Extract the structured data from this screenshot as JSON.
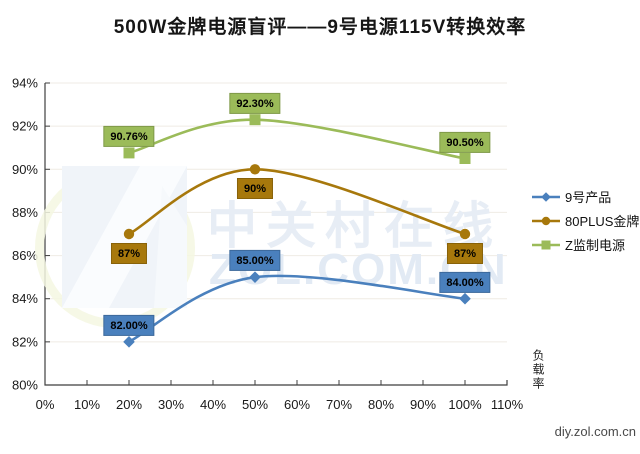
{
  "title": "500W金牌电源盲评——9号电源115V转换效率",
  "watermark": {
    "brand_cn": "中关村在线",
    "brand_en": "ZOL.COM.CN",
    "site": "diy.zol.com.cn"
  },
  "chart_data": {
    "type": "line",
    "title": "500W金牌电源盲评——9号电源115V转换效率",
    "x_label": "负载率",
    "x": [
      20,
      50,
      100
    ],
    "x_axis": {
      "range": [
        0,
        110
      ],
      "tick_step": 10,
      "tick_labels": [
        "0%",
        "10%",
        "20%",
        "30%",
        "40%",
        "50%",
        "60%",
        "70%",
        "80%",
        "90%",
        "100%",
        "110%"
      ]
    },
    "y_axis": {
      "range": [
        80,
        94
      ],
      "tick_step": 2,
      "tick_labels": [
        "80%",
        "82%",
        "84%",
        "86%",
        "88%",
        "90%",
        "92%",
        "94%"
      ]
    },
    "grid": "horizontal",
    "legend_position": "right",
    "colors": {
      "axis": "#3f3f3f",
      "gridline": "#efebe4"
    },
    "series": [
      {
        "name": "9号产品",
        "color": "#4a80bd",
        "marker": "diamond",
        "label_side": "above",
        "values": [
          82.0,
          85.0,
          84.0
        ],
        "point_labels": [
          "82.00%",
          "85.00%",
          "84.00%"
        ]
      },
      {
        "name": "80PLUS金牌",
        "color": "#a7780c",
        "marker": "circle",
        "label_side": "below",
        "values": [
          87,
          90,
          87
        ],
        "point_labels": [
          "87%",
          "90%",
          "87%"
        ]
      },
      {
        "name": "Z监制电源",
        "color": "#9bbb59",
        "marker": "square",
        "label_side": "above",
        "values": [
          90.76,
          92.3,
          90.5
        ],
        "point_labels": [
          "90.76%",
          "92.30%",
          "90.50%"
        ]
      }
    ]
  }
}
